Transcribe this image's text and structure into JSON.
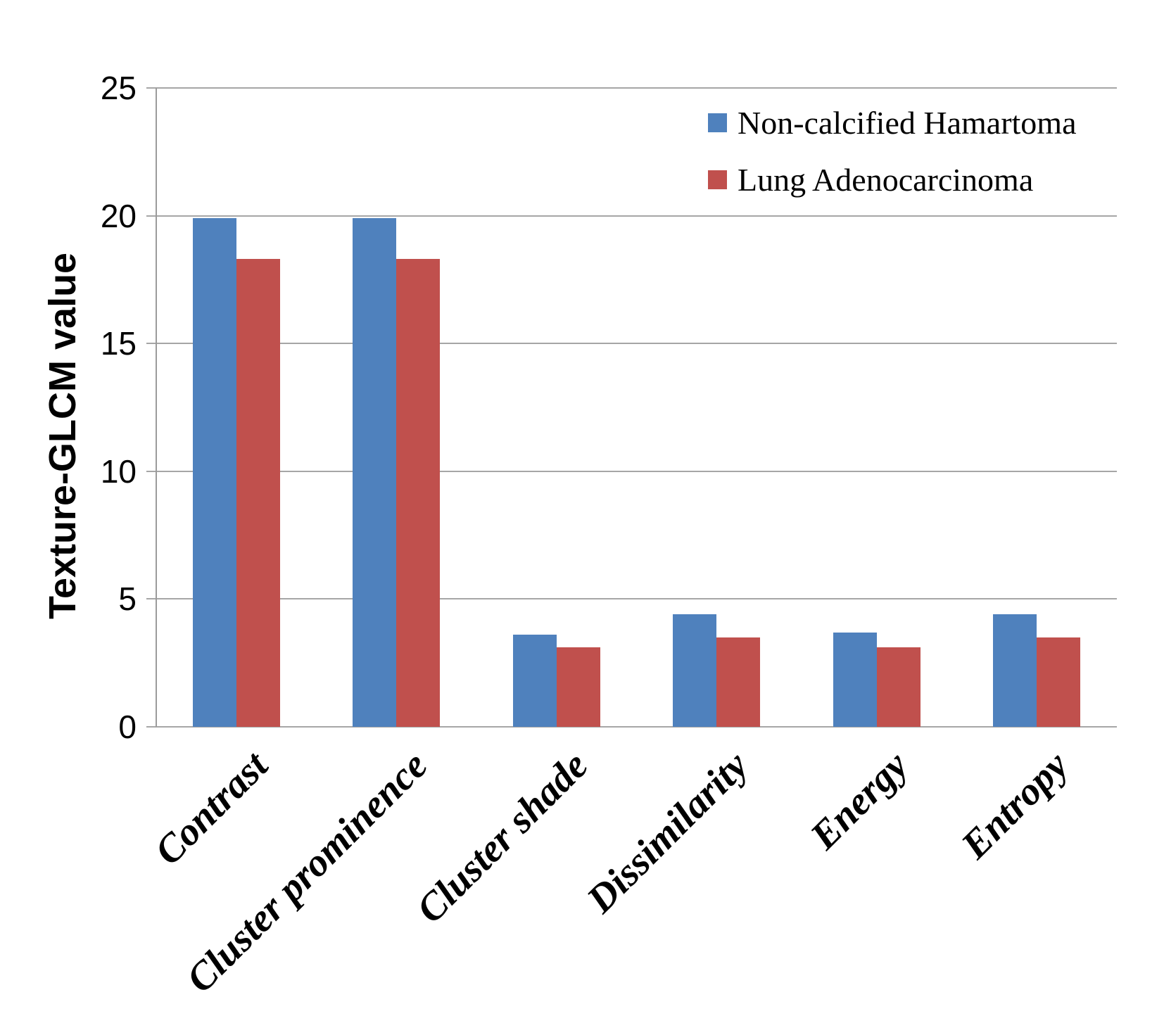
{
  "chart_data": {
    "type": "bar",
    "title": "",
    "categories": [
      "Contrast",
      "Cluster prominence",
      "Cluster shade",
      "Dissimilarity",
      "Energy",
      "Entropy"
    ],
    "series": [
      {
        "name": "Non-calcified Hamartoma",
        "color": "#4F81BD",
        "values": [
          19.9,
          19.9,
          3.6,
          4.4,
          3.7,
          4.4
        ]
      },
      {
        "name": "Lung Adenocarcinoma",
        "color": "#C0504D",
        "values": [
          18.3,
          18.3,
          3.1,
          3.5,
          3.1,
          3.5
        ]
      }
    ],
    "xlabel": "",
    "ylabel": "Texture-GLCM value",
    "ylim": [
      0,
      25
    ],
    "yticks": [
      0,
      5,
      10,
      15,
      20,
      25
    ],
    "grid": "horizontal",
    "legend_position": "top-right-inside"
  },
  "colors": {
    "series_blue": "#4F81BD",
    "series_red": "#C0504D",
    "gridline": "#A6A6A6",
    "axis": "#9B9B9B",
    "text": "#000000",
    "background": "#FFFFFF"
  }
}
